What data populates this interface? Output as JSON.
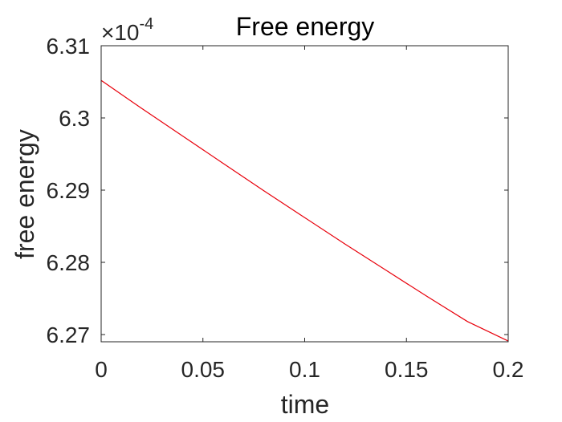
{
  "chart_data": {
    "type": "line",
    "title": "Free energy",
    "xlabel": "time",
    "ylabel": "free energy",
    "y_exponent_multiplier": "×10",
    "y_exponent_power": "-4",
    "xlim": [
      0,
      0.2
    ],
    "ylim": [
      6.269,
      6.31
    ],
    "x_ticks": [
      0,
      0.05,
      0.1,
      0.15,
      0.2
    ],
    "x_tick_labels": [
      "0",
      "0.05",
      "0.1",
      "0.15",
      "0.2"
    ],
    "y_ticks": [
      6.27,
      6.28,
      6.29,
      6.3,
      6.31
    ],
    "y_tick_labels": [
      "6.27",
      "6.28",
      "6.29",
      "6.3",
      "6.31"
    ],
    "grid": false,
    "series": [
      {
        "color": "#e8000b",
        "x": [
          0,
          0.02,
          0.04,
          0.06,
          0.08,
          0.1,
          0.12,
          0.14,
          0.16,
          0.18,
          0.2
        ],
        "y": [
          6.3052,
          6.3013,
          6.2975,
          6.2937,
          6.2899,
          6.2862,
          6.2825,
          6.2789,
          6.2753,
          6.2718,
          6.2691
        ]
      }
    ]
  }
}
